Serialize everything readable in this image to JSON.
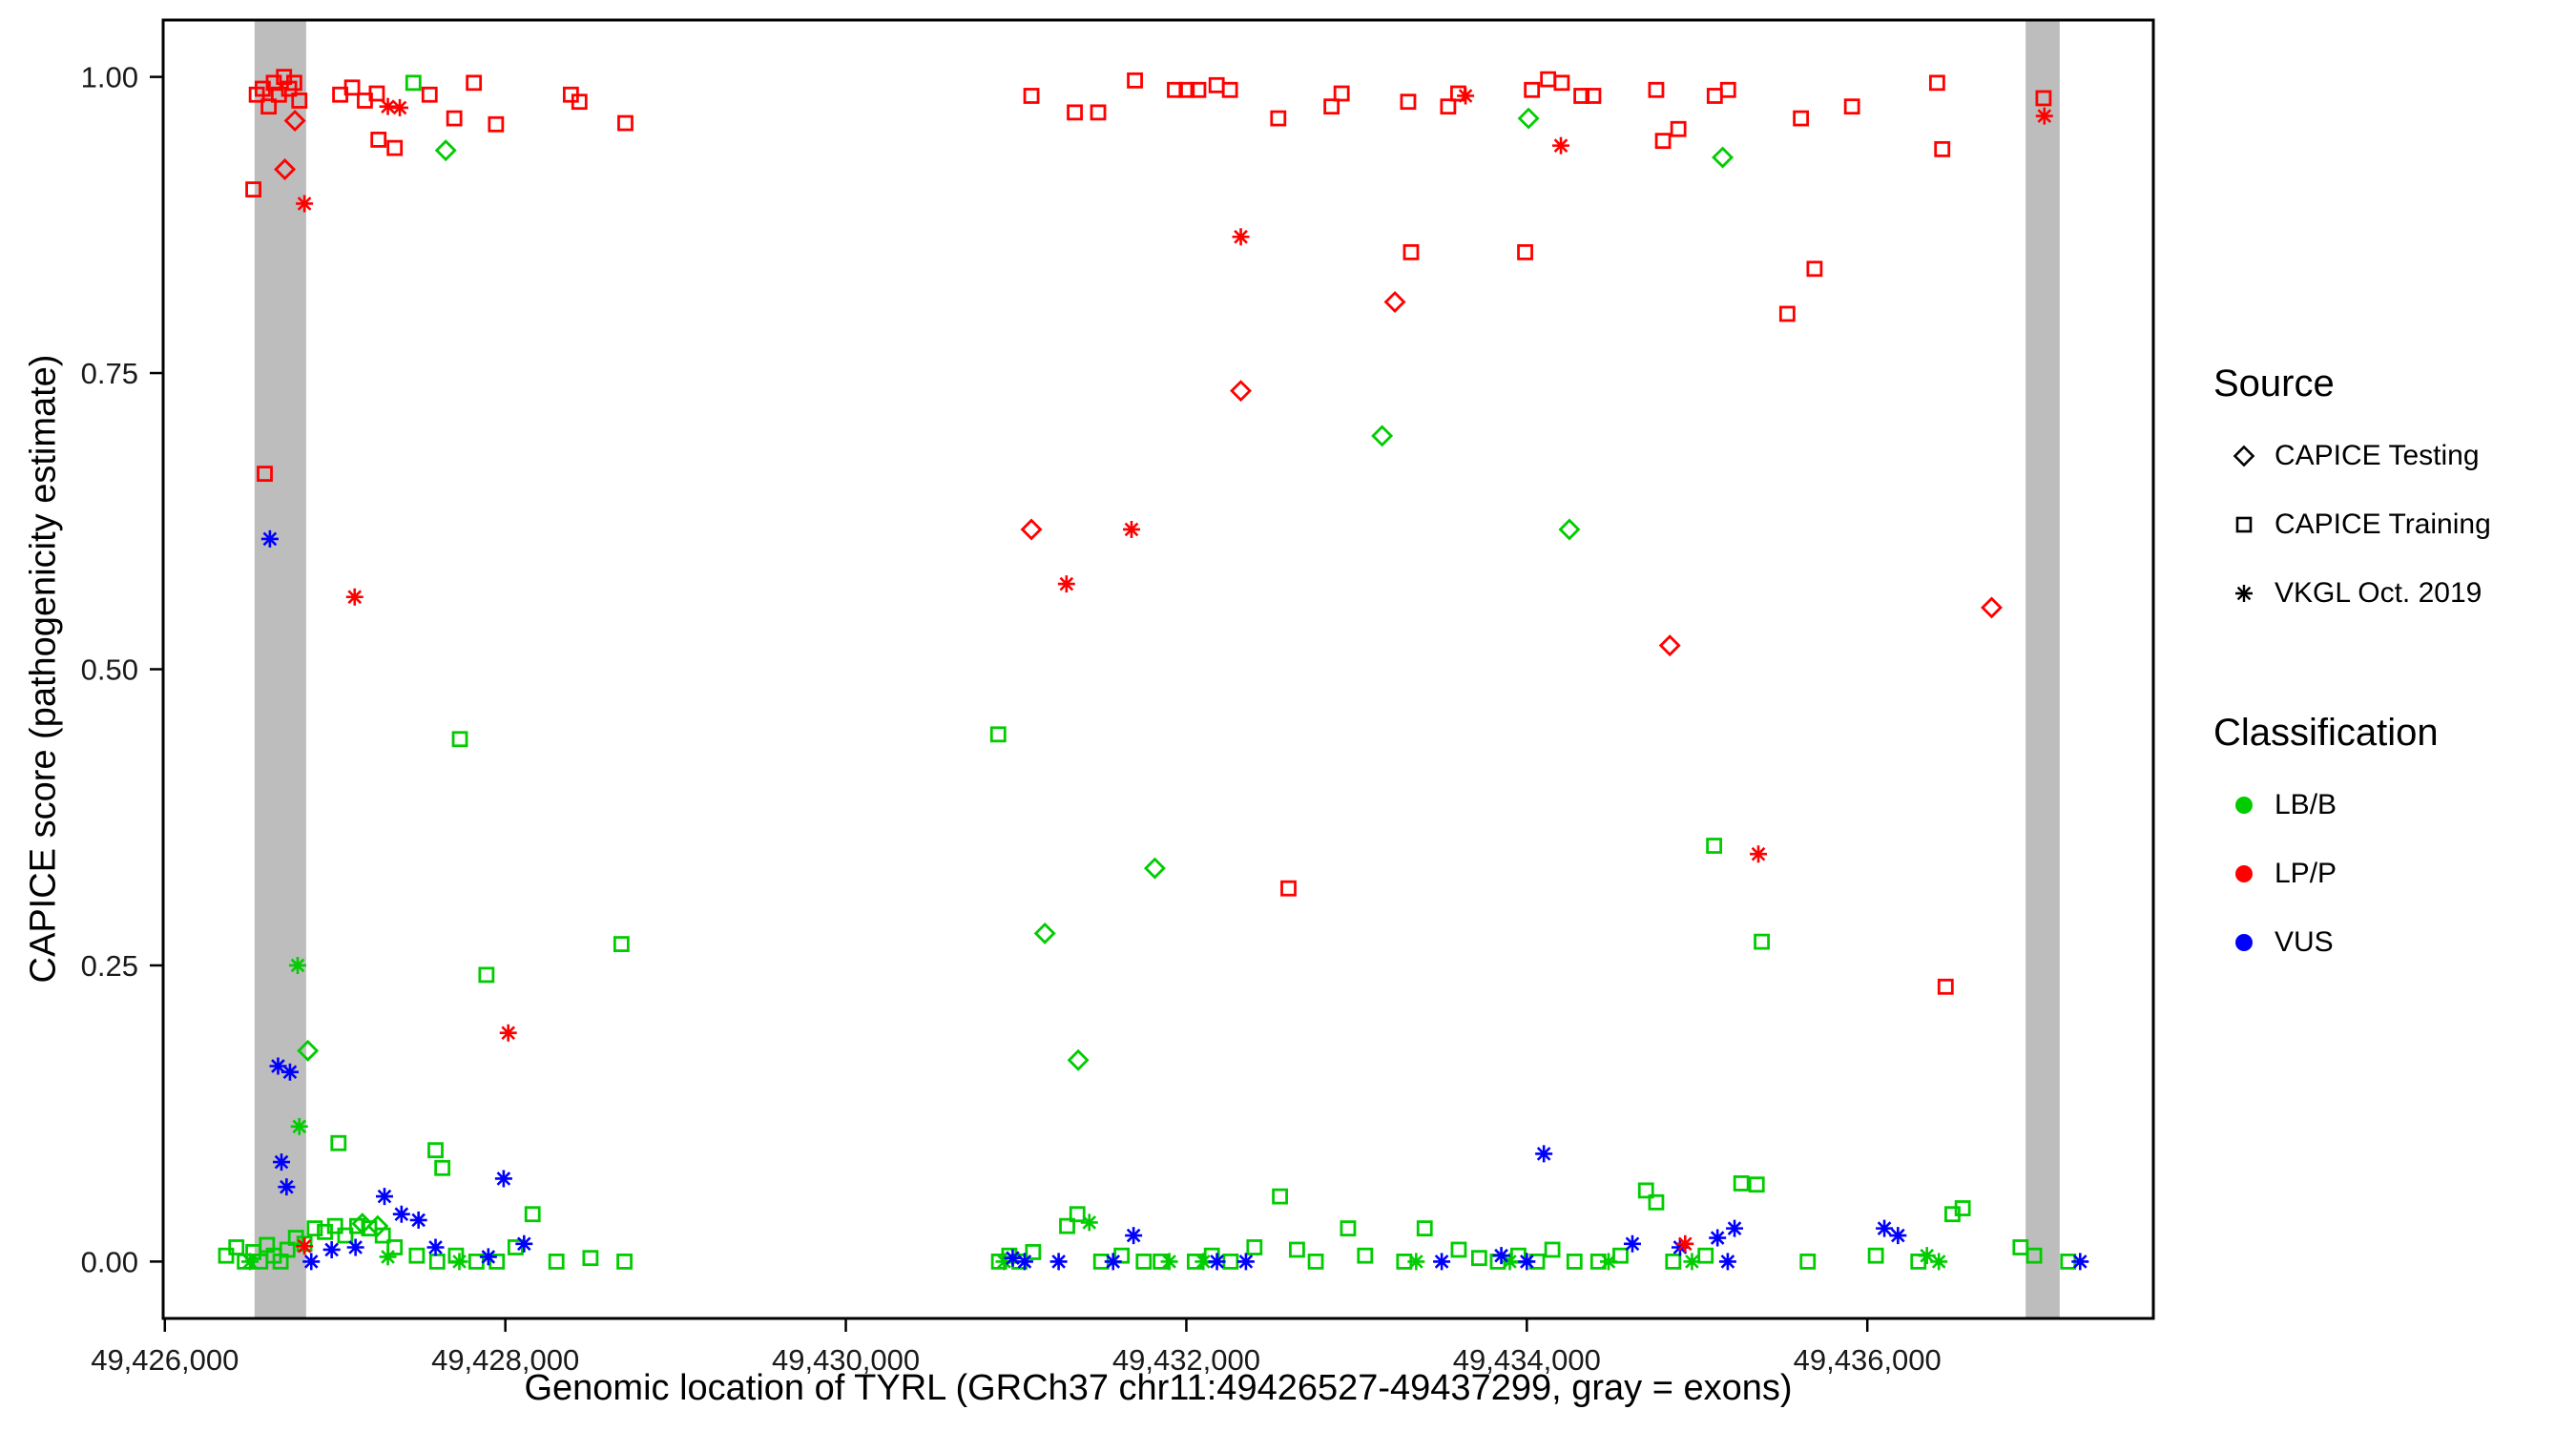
{
  "chart_data": {
    "type": "scatter",
    "title": "",
    "xlabel": "Genomic location of TYRL (GRCh37 chr11:49426527-49437299, gray = exons)",
    "ylabel": "CAPICE score (pathogenicity estimate)",
    "xlim": [
      49425990,
      49437680
    ],
    "ylim": [
      -0.048,
      1.048
    ],
    "grid": false,
    "legend_position": "right",
    "x_ticks": [
      {
        "value": 49426000,
        "label": "49,426,000"
      },
      {
        "value": 49428000,
        "label": "49,428,000"
      },
      {
        "value": 49430000,
        "label": "49,430,000"
      },
      {
        "value": 49432000,
        "label": "49,432,000"
      },
      {
        "value": 49434000,
        "label": "49,434,000"
      },
      {
        "value": 49436000,
        "label": "49,436,000"
      }
    ],
    "y_ticks": [
      {
        "value": 0.0,
        "label": "0.00"
      },
      {
        "value": 0.25,
        "label": "0.25"
      },
      {
        "value": 0.5,
        "label": "0.50"
      },
      {
        "value": 0.75,
        "label": "0.75"
      },
      {
        "value": 1.0,
        "label": "1.00"
      }
    ],
    "exon_color": "#BDBDBD",
    "exon_bands": [
      {
        "start": 49426527,
        "end": 49426830
      },
      {
        "start": 49436930,
        "end": 49437130
      }
    ],
    "class_colors": {
      "g": "#00CC00",
      "r": "#FF0000",
      "b": "#0000FF"
    },
    "class_names": {
      "g": "LB/B",
      "r": "LP/P",
      "b": "VUS"
    },
    "shape_names": {
      "s": "CAPICE Training (square)",
      "d": "CAPICE Testing (diamond)",
      "a": "VKGL Oct. 2019 (asterisk)"
    },
    "point_format": [
      "x_genomic_position",
      "capice_score",
      "shape(s|d|a)",
      "class(g|r|b)"
    ],
    "points": [
      [
        49426520,
        0.905,
        "s",
        "r"
      ],
      [
        49426540,
        0.985,
        "s",
        "r"
      ],
      [
        49426575,
        0.99,
        "s",
        "r"
      ],
      [
        49426610,
        0.975,
        "s",
        "r"
      ],
      [
        49426640,
        0.995,
        "s",
        "r"
      ],
      [
        49426670,
        0.985,
        "s",
        "r"
      ],
      [
        49426700,
        1.0,
        "s",
        "r"
      ],
      [
        49426730,
        0.99,
        "s",
        "r"
      ],
      [
        49426760,
        0.995,
        "s",
        "r"
      ],
      [
        49426790,
        0.98,
        "s",
        "r"
      ],
      [
        49426705,
        0.922,
        "d",
        "r"
      ],
      [
        49426764,
        0.963,
        "d",
        "r"
      ],
      [
        49426820,
        0.893,
        "a",
        "r"
      ],
      [
        49426587,
        0.665,
        "s",
        "r"
      ],
      [
        49426617,
        0.61,
        "a",
        "b"
      ],
      [
        49427115,
        0.561,
        "a",
        "r"
      ],
      [
        49427030,
        0.985,
        "s",
        "r"
      ],
      [
        49427100,
        0.991,
        "s",
        "r"
      ],
      [
        49427175,
        0.98,
        "s",
        "r"
      ],
      [
        49427245,
        0.986,
        "s",
        "r"
      ],
      [
        49427310,
        0.975,
        "a",
        "r"
      ],
      [
        49427380,
        0.974,
        "a",
        "r"
      ],
      [
        49427350,
        0.94,
        "s",
        "r"
      ],
      [
        49427255,
        0.947,
        "s",
        "r"
      ],
      [
        49427460,
        0.995,
        "s",
        "g"
      ],
      [
        49427555,
        0.985,
        "s",
        "r"
      ],
      [
        49427650,
        0.938,
        "d",
        "g"
      ],
      [
        49427700,
        0.965,
        "s",
        "r"
      ],
      [
        49427815,
        0.995,
        "s",
        "r"
      ],
      [
        49427945,
        0.96,
        "s",
        "r"
      ],
      [
        49428385,
        0.985,
        "s",
        "r"
      ],
      [
        49428435,
        0.979,
        "s",
        "r"
      ],
      [
        49428705,
        0.961,
        "s",
        "r"
      ],
      [
        49427733,
        0.441,
        "s",
        "g"
      ],
      [
        49427889,
        0.242,
        "s",
        "g"
      ],
      [
        49428682,
        0.268,
        "s",
        "g"
      ],
      [
        49428017,
        0.193,
        "a",
        "r"
      ],
      [
        49426780,
        0.25,
        "a",
        "g"
      ],
      [
        49426840,
        0.178,
        "d",
        "g"
      ],
      [
        49426790,
        0.114,
        "a",
        "g"
      ],
      [
        49426665,
        0.165,
        "a",
        "b"
      ],
      [
        49426735,
        0.16,
        "a",
        "b"
      ],
      [
        49426685,
        0.084,
        "a",
        "b"
      ],
      [
        49426715,
        0.063,
        "a",
        "b"
      ],
      [
        49427020,
        0.1,
        "s",
        "g"
      ],
      [
        49427590,
        0.094,
        "s",
        "g"
      ],
      [
        49427630,
        0.079,
        "s",
        "g"
      ],
      [
        49426360,
        0.005,
        "s",
        "g"
      ],
      [
        49426420,
        0.012,
        "s",
        "g"
      ],
      [
        49426470,
        0,
        "s",
        "g"
      ],
      [
        49426520,
        0.008,
        "s",
        "g"
      ],
      [
        49426560,
        0,
        "s",
        "g"
      ],
      [
        49426600,
        0.014,
        "s",
        "g"
      ],
      [
        49426640,
        0.005,
        "s",
        "g"
      ],
      [
        49426680,
        0,
        "s",
        "g"
      ],
      [
        49426720,
        0.01,
        "s",
        "g"
      ],
      [
        49426770,
        0.02,
        "s",
        "g"
      ],
      [
        49426820,
        0.015,
        "s",
        "g"
      ],
      [
        49426880,
        0.028,
        "s",
        "g"
      ],
      [
        49426940,
        0.025,
        "s",
        "g"
      ],
      [
        49427000,
        0.03,
        "s",
        "g"
      ],
      [
        49427060,
        0.022,
        "s",
        "g"
      ],
      [
        49427130,
        0.03,
        "s",
        "g"
      ],
      [
        49427200,
        0.028,
        "s",
        "g"
      ],
      [
        49427280,
        0.022,
        "s",
        "g"
      ],
      [
        49427350,
        0.012,
        "s",
        "g"
      ],
      [
        49427480,
        0.005,
        "s",
        "g"
      ],
      [
        49427600,
        0,
        "s",
        "g"
      ],
      [
        49427710,
        0.005,
        "s",
        "g"
      ],
      [
        49427830,
        0,
        "s",
        "g"
      ],
      [
        49427950,
        0,
        "s",
        "g"
      ],
      [
        49428060,
        0.012,
        "s",
        "g"
      ],
      [
        49428160,
        0.04,
        "s",
        "g"
      ],
      [
        49428300,
        0,
        "s",
        "g"
      ],
      [
        49428500,
        0.003,
        "s",
        "g"
      ],
      [
        49428700,
        0,
        "s",
        "g"
      ],
      [
        49426860,
        0,
        "a",
        "b"
      ],
      [
        49426980,
        0.01,
        "a",
        "b"
      ],
      [
        49427120,
        0.012,
        "a",
        "b"
      ],
      [
        49427290,
        0.055,
        "a",
        "b"
      ],
      [
        49427390,
        0.04,
        "a",
        "b"
      ],
      [
        49427490,
        0.035,
        "a",
        "b"
      ],
      [
        49427990,
        0.07,
        "a",
        "b"
      ],
      [
        49427590,
        0.012,
        "a",
        "b"
      ],
      [
        49428110,
        0.015,
        "a",
        "b"
      ],
      [
        49427900,
        0.004,
        "a",
        "b"
      ],
      [
        49426500,
        0,
        "a",
        "g"
      ],
      [
        49427310,
        0.004,
        "a",
        "g"
      ],
      [
        49427730,
        0,
        "a",
        "g"
      ],
      [
        49426820,
        0.013,
        "a",
        "r"
      ],
      [
        49427160,
        0.032,
        "d",
        "g"
      ],
      [
        49427250,
        0.03,
        "d",
        "g"
      ],
      [
        49431090,
        0.984,
        "s",
        "r"
      ],
      [
        49431345,
        0.97,
        "s",
        "r"
      ],
      [
        49431482,
        0.97,
        "s",
        "r"
      ],
      [
        49431698,
        0.997,
        "s",
        "r"
      ],
      [
        49431933,
        0.989,
        "s",
        "r"
      ],
      [
        49432002,
        0.989,
        "s",
        "r"
      ],
      [
        49432070,
        0.989,
        "s",
        "r"
      ],
      [
        49432178,
        0.993,
        "s",
        "r"
      ],
      [
        49432256,
        0.989,
        "s",
        "r"
      ],
      [
        49432540,
        0.965,
        "s",
        "r"
      ],
      [
        49432853,
        0.975,
        "s",
        "r"
      ],
      [
        49432912,
        0.986,
        "s",
        "r"
      ],
      [
        49433303,
        0.979,
        "s",
        "r"
      ],
      [
        49433538,
        0.975,
        "s",
        "r"
      ],
      [
        49433597,
        0.986,
        "s",
        "r"
      ],
      [
        49433640,
        0.984,
        "a",
        "r"
      ],
      [
        49432320,
        0.865,
        "a",
        "r"
      ],
      [
        49432320,
        0.735,
        "d",
        "r"
      ],
      [
        49433225,
        0.81,
        "d",
        "r"
      ],
      [
        49433320,
        0.852,
        "s",
        "r"
      ],
      [
        49433150,
        0.697,
        "d",
        "g"
      ],
      [
        49431090,
        0.618,
        "d",
        "r"
      ],
      [
        49431296,
        0.572,
        "a",
        "r"
      ],
      [
        49431678,
        0.618,
        "a",
        "r"
      ],
      [
        49430895,
        0.445,
        "s",
        "g"
      ],
      [
        49431169,
        0.277,
        "d",
        "g"
      ],
      [
        49431815,
        0.332,
        "d",
        "g"
      ],
      [
        49431365,
        0.17,
        "d",
        "g"
      ],
      [
        49432600,
        0.315,
        "s",
        "r"
      ],
      [
        49433990,
        0.852,
        "s",
        "r"
      ],
      [
        49434030,
        0.989,
        "s",
        "r"
      ],
      [
        49434125,
        0.998,
        "s",
        "r"
      ],
      [
        49434205,
        0.995,
        "s",
        "r"
      ],
      [
        49434010,
        0.965,
        "d",
        "g"
      ],
      [
        49434200,
        0.942,
        "a",
        "r"
      ],
      [
        49434321,
        0.984,
        "s",
        "r"
      ],
      [
        49434390,
        0.984,
        "s",
        "r"
      ],
      [
        49434760,
        0.989,
        "s",
        "r"
      ],
      [
        49434800,
        0.946,
        "s",
        "r"
      ],
      [
        49434890,
        0.956,
        "s",
        "r"
      ],
      [
        49435150,
        0.932,
        "d",
        "g"
      ],
      [
        49435104,
        0.984,
        "s",
        "r"
      ],
      [
        49435182,
        0.989,
        "s",
        "r"
      ],
      [
        49435610,
        0.965,
        "s",
        "r"
      ],
      [
        49435910,
        0.975,
        "s",
        "r"
      ],
      [
        49436410,
        0.995,
        "s",
        "r"
      ],
      [
        49436440,
        0.939,
        "s",
        "r"
      ],
      [
        49437035,
        0.982,
        "s",
        "r"
      ],
      [
        49437040,
        0.967,
        "a",
        "r"
      ],
      [
        49434250,
        0.618,
        "d",
        "g"
      ],
      [
        49434840,
        0.52,
        "d",
        "r"
      ],
      [
        49436730,
        0.552,
        "d",
        "r"
      ],
      [
        49435530,
        0.8,
        "s",
        "r"
      ],
      [
        49435690,
        0.838,
        "s",
        "r"
      ],
      [
        49435100,
        0.351,
        "s",
        "g"
      ],
      [
        49435360,
        0.344,
        "a",
        "r"
      ],
      [
        49435380,
        0.27,
        "s",
        "g"
      ],
      [
        49436460,
        0.232,
        "s",
        "r"
      ],
      [
        49435260,
        0.066,
        "s",
        "g"
      ],
      [
        49430900,
        0,
        "s",
        "g"
      ],
      [
        49430960,
        0.005,
        "s",
        "g"
      ],
      [
        49431020,
        0,
        "s",
        "g"
      ],
      [
        49431100,
        0.008,
        "s",
        "g"
      ],
      [
        49431300,
        0.03,
        "s",
        "g"
      ],
      [
        49431360,
        0.04,
        "s",
        "g"
      ],
      [
        49431500,
        0,
        "s",
        "g"
      ],
      [
        49431620,
        0.005,
        "s",
        "g"
      ],
      [
        49431750,
        0,
        "s",
        "g"
      ],
      [
        49431850,
        0,
        "s",
        "g"
      ],
      [
        49432050,
        0,
        "s",
        "g"
      ],
      [
        49432150,
        0.005,
        "s",
        "g"
      ],
      [
        49432260,
        0,
        "s",
        "g"
      ],
      [
        49432400,
        0.012,
        "s",
        "g"
      ],
      [
        49432550,
        0.055,
        "s",
        "g"
      ],
      [
        49432650,
        0.01,
        "s",
        "g"
      ],
      [
        49432760,
        0,
        "s",
        "g"
      ],
      [
        49432950,
        0.028,
        "s",
        "g"
      ],
      [
        49433050,
        0.005,
        "s",
        "g"
      ],
      [
        49430930,
        0,
        "a",
        "g"
      ],
      [
        49431430,
        0.033,
        "a",
        "g"
      ],
      [
        49431900,
        0,
        "a",
        "g"
      ],
      [
        49432100,
        0,
        "a",
        "g"
      ],
      [
        49430980,
        0.003,
        "a",
        "b"
      ],
      [
        49431050,
        0,
        "a",
        "b"
      ],
      [
        49431250,
        0,
        "a",
        "b"
      ],
      [
        49431570,
        0,
        "a",
        "b"
      ],
      [
        49431690,
        0.022,
        "a",
        "b"
      ],
      [
        49432180,
        0,
        "a",
        "b"
      ],
      [
        49432350,
        0,
        "a",
        "b"
      ],
      [
        49433280,
        0,
        "s",
        "g"
      ],
      [
        49433400,
        0.028,
        "s",
        "g"
      ],
      [
        49433600,
        0.01,
        "s",
        "g"
      ],
      [
        49433720,
        0.003,
        "s",
        "g"
      ],
      [
        49433830,
        0,
        "s",
        "g"
      ],
      [
        49433950,
        0.005,
        "s",
        "g"
      ],
      [
        49434060,
        0,
        "s",
        "g"
      ],
      [
        49434150,
        0.01,
        "s",
        "g"
      ],
      [
        49434280,
        0,
        "s",
        "g"
      ],
      [
        49434420,
        0,
        "s",
        "g"
      ],
      [
        49434550,
        0.005,
        "s",
        "g"
      ],
      [
        49434700,
        0.06,
        "s",
        "g"
      ],
      [
        49434760,
        0.05,
        "s",
        "g"
      ],
      [
        49434860,
        0,
        "s",
        "g"
      ],
      [
        49435050,
        0.005,
        "s",
        "g"
      ],
      [
        49435350,
        0.065,
        "s",
        "g"
      ],
      [
        49435650,
        0,
        "s",
        "g"
      ],
      [
        49436050,
        0.005,
        "s",
        "g"
      ],
      [
        49436300,
        0,
        "s",
        "g"
      ],
      [
        49436500,
        0.04,
        "s",
        "g"
      ],
      [
        49436560,
        0.045,
        "s",
        "g"
      ],
      [
        49436900,
        0.012,
        "s",
        "g"
      ],
      [
        49436980,
        0.005,
        "s",
        "g"
      ],
      [
        49437180,
        0,
        "s",
        "g"
      ],
      [
        49433350,
        0,
        "a",
        "g"
      ],
      [
        49433900,
        0,
        "a",
        "g"
      ],
      [
        49434480,
        0,
        "a",
        "g"
      ],
      [
        49434970,
        0,
        "a",
        "g"
      ],
      [
        49436350,
        0.005,
        "a",
        "g"
      ],
      [
        49436420,
        0,
        "a",
        "g"
      ],
      [
        49433500,
        0,
        "a",
        "b"
      ],
      [
        49433850,
        0.005,
        "a",
        "b"
      ],
      [
        49434000,
        0,
        "a",
        "b"
      ],
      [
        49434100,
        0.091,
        "a",
        "b"
      ],
      [
        49434620,
        0.015,
        "a",
        "b"
      ],
      [
        49434900,
        0.012,
        "a",
        "b"
      ],
      [
        49435120,
        0.02,
        "a",
        "b"
      ],
      [
        49435220,
        0.028,
        "a",
        "b"
      ],
      [
        49435180,
        0,
        "a",
        "b"
      ],
      [
        49436100,
        0.028,
        "a",
        "b"
      ],
      [
        49436180,
        0.022,
        "a",
        "b"
      ],
      [
        49437250,
        0,
        "a",
        "b"
      ],
      [
        49434930,
        0.015,
        "a",
        "r"
      ]
    ]
  },
  "legend": {
    "source": {
      "title": "Source",
      "items": [
        {
          "label": "CAPICE Testing",
          "shape": "diamond"
        },
        {
          "label": "CAPICE Training",
          "shape": "square"
        },
        {
          "label": "VKGL Oct. 2019",
          "shape": "asterisk"
        }
      ]
    },
    "classification": {
      "title": "Classification",
      "items": [
        {
          "label": "LB/B",
          "color": "#00CC00"
        },
        {
          "label": "LP/P",
          "color": "#FF0000"
        },
        {
          "label": "VUS",
          "color": "#0000FF"
        }
      ]
    }
  }
}
